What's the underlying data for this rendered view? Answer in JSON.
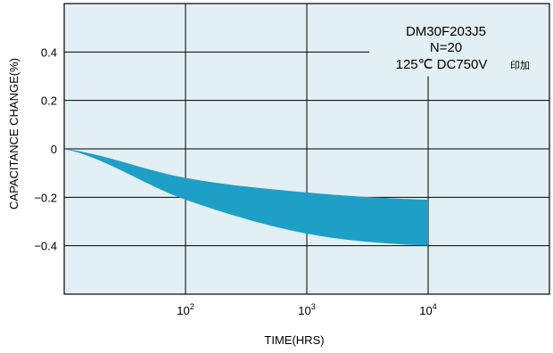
{
  "chart_data": {
    "type": "area",
    "xlabel": "TIME(HRS)",
    "ylabel": "CAPACITANCE CHANGE(%)",
    "x_scale": "log",
    "xlim": [
      10,
      100000
    ],
    "ylim": [
      -0.6,
      0.6
    ],
    "x_ticks": [
      {
        "value": 100,
        "base": "10",
        "exp": "2"
      },
      {
        "value": 1000,
        "base": "10",
        "exp": "3"
      },
      {
        "value": 10000,
        "base": "10",
        "exp": "4"
      }
    ],
    "y_ticks": [
      {
        "value": 0.4,
        "label": "0.4"
      },
      {
        "value": 0.2,
        "label": "0.2"
      },
      {
        "value": 0,
        "label": "0"
      },
      {
        "value": -0.2,
        "label": "−0.2"
      },
      {
        "value": -0.4,
        "label": "−0.4"
      }
    ],
    "grid": true,
    "band": {
      "color": "#1e9fc6",
      "x": [
        10,
        100,
        1000,
        10000
      ],
      "upper": [
        0,
        -0.12,
        -0.18,
        -0.21
      ],
      "lower": [
        0,
        -0.21,
        -0.35,
        -0.4
      ]
    },
    "annotations": [
      "DM30F203J5",
      "N=20",
      "125℃ DC750V"
    ],
    "annotation_note": "印加"
  },
  "colors": {
    "plot_background": "#e2eff4",
    "grid": "#000000",
    "band": "#1e9fc6"
  }
}
